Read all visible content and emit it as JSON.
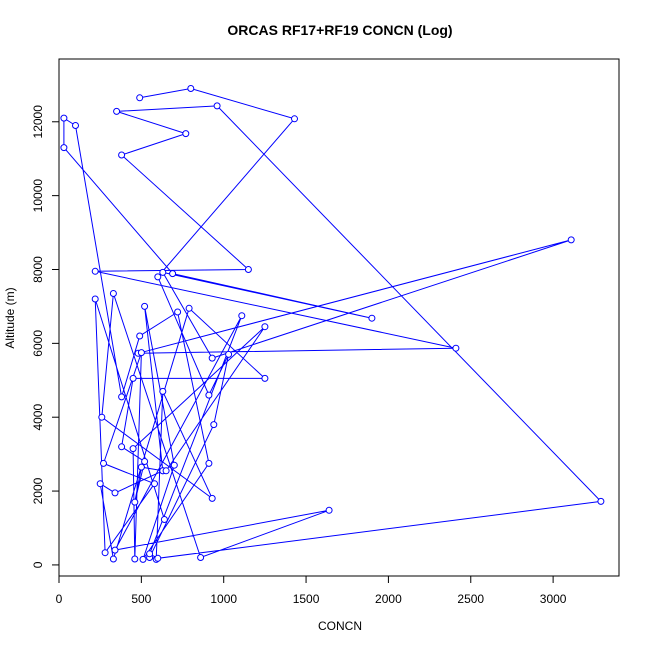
{
  "chart_data": {
    "type": "line",
    "title": "ORCAS RF17+RF19 CONCN (Log)",
    "xlabel": "CONCN",
    "ylabel": "Altitude (m)",
    "xlim": [
      0,
      3400
    ],
    "ylim": [
      -300,
      13700
    ],
    "xticks": [
      0,
      500,
      1000,
      1500,
      2000,
      2500,
      3000
    ],
    "yticks": [
      0,
      2000,
      4000,
      6000,
      8000,
      10000,
      12000
    ],
    "grid": false,
    "line_color": "#0000ff",
    "marker": "open-circle",
    "points": [
      [
        490,
        12650
      ],
      [
        800,
        12900
      ],
      [
        1430,
        12080
      ],
      [
        600,
        7800
      ],
      [
        910,
        4600
      ],
      [
        1030,
        5700
      ],
      [
        940,
        3800
      ],
      [
        550,
        200
      ],
      [
        590,
        150
      ],
      [
        630,
        4700
      ],
      [
        930,
        1800
      ],
      [
        260,
        4000
      ],
      [
        330,
        7350
      ],
      [
        860,
        200
      ],
      [
        1640,
        1480
      ],
      [
        340,
        400
      ],
      [
        1110,
        6750
      ],
      [
        550,
        300
      ],
      [
        600,
        180
      ],
      [
        3290,
        1720
      ],
      [
        960,
        12430
      ],
      [
        350,
        12280
      ],
      [
        770,
        11680
      ],
      [
        380,
        11100
      ],
      [
        1150,
        8000
      ],
      [
        220,
        7950
      ],
      [
        2410,
        5870
      ],
      [
        480,
        5730
      ],
      [
        3110,
        8800
      ],
      [
        930,
        5600
      ],
      [
        630,
        7920
      ],
      [
        1900,
        6680
      ],
      [
        690,
        7890
      ],
      [
        30,
        11300
      ],
      [
        30,
        12100
      ],
      [
        100,
        11900
      ],
      [
        380,
        4550
      ],
      [
        490,
        6200
      ],
      [
        720,
        6850
      ],
      [
        910,
        2750
      ],
      [
        510,
        150
      ],
      [
        700,
        2700
      ],
      [
        520,
        7000
      ],
      [
        630,
        2550
      ],
      [
        340,
        1950
      ],
      [
        250,
        2200
      ],
      [
        330,
        160
      ],
      [
        790,
        6950
      ],
      [
        1250,
        5050
      ],
      [
        450,
        5050
      ],
      [
        380,
        3200
      ],
      [
        520,
        2800
      ],
      [
        460,
        1700
      ],
      [
        500,
        2650
      ],
      [
        630,
        2550
      ],
      [
        650,
        2550
      ],
      [
        1250,
        6450
      ],
      [
        450,
        3150
      ],
      [
        460,
        160
      ],
      [
        500,
        5750
      ],
      [
        270,
        2750
      ],
      [
        580,
        2200
      ],
      [
        280,
        330
      ],
      [
        220,
        7200
      ],
      [
        640,
        1230
      ]
    ]
  }
}
